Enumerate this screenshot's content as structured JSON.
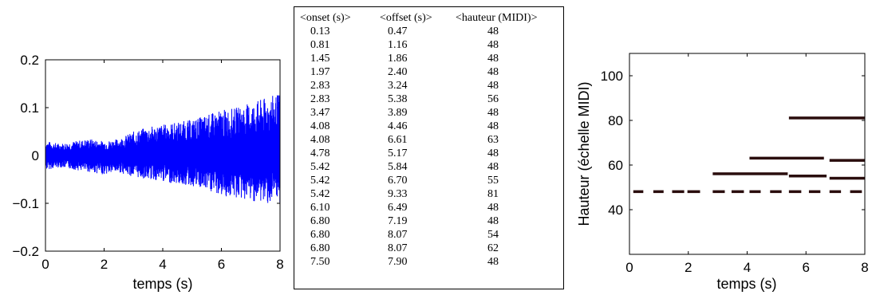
{
  "chart_data": [
    {
      "type": "line",
      "description_role": "waveform",
      "xlabel": "temps (s)",
      "ylabel": "",
      "xlim": [
        0,
        8
      ],
      "ylim": [
        -0.2,
        0.2
      ],
      "xticks": [
        "0",
        "2",
        "4",
        "6",
        "8"
      ],
      "yticks": [
        "0.2",
        "0.1",
        "0",
        "−0.1",
        "−0.2"
      ],
      "series_color": "#0000ff",
      "envelope": {
        "x": [
          0,
          0.5,
          1.0,
          1.5,
          2.0,
          2.5,
          3.0,
          3.5,
          4.0,
          4.5,
          5.0,
          5.5,
          6.0,
          6.5,
          7.0,
          7.5,
          8.0
        ],
        "max": [
          0.03,
          0.025,
          0.03,
          0.035,
          0.03,
          0.035,
          0.05,
          0.06,
          0.065,
          0.07,
          0.075,
          0.085,
          0.095,
          0.1,
          0.11,
          0.12,
          0.13
        ],
        "min": [
          -0.03,
          -0.025,
          -0.03,
          -0.035,
          -0.04,
          -0.035,
          -0.045,
          -0.05,
          -0.055,
          -0.06,
          -0.065,
          -0.075,
          -0.085,
          -0.09,
          -0.095,
          -0.1,
          -0.1
        ]
      }
    },
    {
      "type": "table",
      "columns": [
        "<onset (s)>",
        "<offset (s)>",
        "<hauteur (MIDI)>"
      ],
      "rows": [
        [
          "0.13",
          "0.47",
          "48"
        ],
        [
          "0.81",
          "1.16",
          "48"
        ],
        [
          "1.45",
          "1.86",
          "48"
        ],
        [
          "1.97",
          "2.40",
          "48"
        ],
        [
          "2.83",
          "3.24",
          "48"
        ],
        [
          "2.83",
          "5.38",
          "56"
        ],
        [
          "3.47",
          "3.89",
          "48"
        ],
        [
          "4.08",
          "4.46",
          "48"
        ],
        [
          "4.08",
          "6.61",
          "63"
        ],
        [
          "4.78",
          "5.17",
          "48"
        ],
        [
          "5.42",
          "5.84",
          "48"
        ],
        [
          "5.42",
          "6.70",
          "55"
        ],
        [
          "5.42",
          "9.33",
          "81"
        ],
        [
          "6.10",
          "6.49",
          "48"
        ],
        [
          "6.80",
          "7.19",
          "48"
        ],
        [
          "6.80",
          "8.07",
          "54"
        ],
        [
          "6.80",
          "8.07",
          "62"
        ],
        [
          "7.50",
          "7.90",
          "48"
        ]
      ]
    },
    {
      "type": "piano-roll",
      "xlabel": "temps (s)",
      "ylabel": "Hauteur (échelle MIDI)",
      "xlim": [
        0,
        8
      ],
      "ylim": [
        20,
        110
      ],
      "xticks": [
        "0",
        "2",
        "4",
        "6",
        "8"
      ],
      "yticks": [
        "100",
        "80",
        "60",
        "40"
      ],
      "note_color": "#2a0d0d",
      "notes": [
        {
          "onset": 0.13,
          "offset": 0.47,
          "pitch": 48
        },
        {
          "onset": 0.81,
          "offset": 1.16,
          "pitch": 48
        },
        {
          "onset": 1.45,
          "offset": 1.86,
          "pitch": 48
        },
        {
          "onset": 1.97,
          "offset": 2.4,
          "pitch": 48
        },
        {
          "onset": 2.83,
          "offset": 3.24,
          "pitch": 48
        },
        {
          "onset": 2.83,
          "offset": 5.38,
          "pitch": 56
        },
        {
          "onset": 3.47,
          "offset": 3.89,
          "pitch": 48
        },
        {
          "onset": 4.08,
          "offset": 4.46,
          "pitch": 48
        },
        {
          "onset": 4.08,
          "offset": 6.61,
          "pitch": 63
        },
        {
          "onset": 4.78,
          "offset": 5.17,
          "pitch": 48
        },
        {
          "onset": 5.42,
          "offset": 5.84,
          "pitch": 48
        },
        {
          "onset": 5.42,
          "offset": 6.7,
          "pitch": 55
        },
        {
          "onset": 5.42,
          "offset": 9.33,
          "pitch": 81
        },
        {
          "onset": 6.1,
          "offset": 6.49,
          "pitch": 48
        },
        {
          "onset": 6.8,
          "offset": 7.19,
          "pitch": 48
        },
        {
          "onset": 6.8,
          "offset": 8.07,
          "pitch": 54
        },
        {
          "onset": 6.8,
          "offset": 8.07,
          "pitch": 62
        },
        {
          "onset": 7.5,
          "offset": 7.9,
          "pitch": 48
        }
      ]
    }
  ]
}
